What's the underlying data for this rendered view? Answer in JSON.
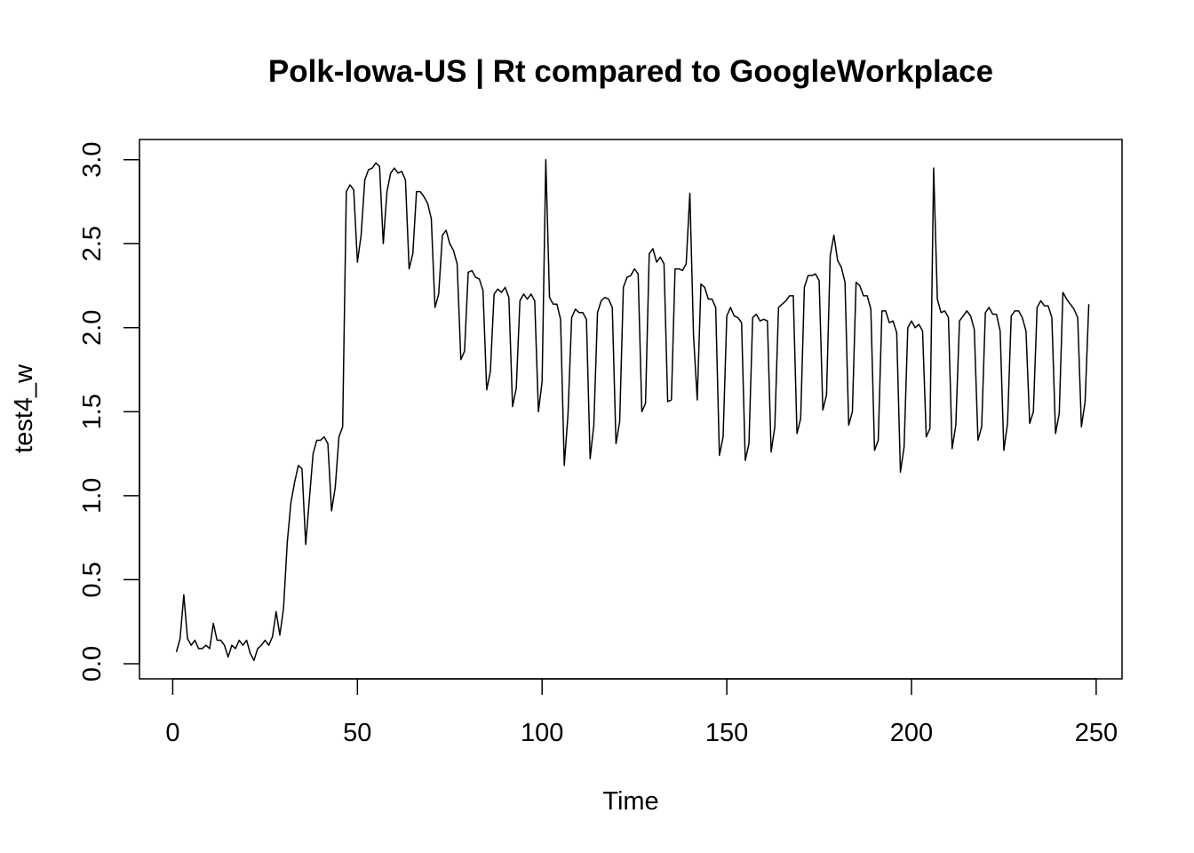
{
  "chart_data": {
    "type": "line",
    "title": "Polk-Iowa-US | Rt compared to GoogleWorkplace",
    "xlabel": "Time",
    "ylabel": "test4_w",
    "x_ticks": [
      0,
      50,
      100,
      150,
      200,
      250
    ],
    "y_ticks": [
      0.0,
      0.5,
      1.0,
      1.5,
      2.0,
      2.5,
      3.0
    ],
    "x_tick_labels": [
      "0",
      "50",
      "100",
      "150",
      "200",
      "250"
    ],
    "y_tick_labels": [
      "0.0",
      "0.5",
      "1.0",
      "1.5",
      "2.0",
      "2.5",
      "3.0"
    ],
    "xlim": [
      -9,
      257
    ],
    "ylim": [
      -0.09,
      3.12
    ],
    "grid": false,
    "line_color": "#000000",
    "x_start": 1,
    "series": [
      {
        "values": [
          0.07,
          0.15,
          0.41,
          0.15,
          0.11,
          0.14,
          0.09,
          0.09,
          0.11,
          0.09,
          0.24,
          0.14,
          0.14,
          0.11,
          0.04,
          0.11,
          0.09,
          0.14,
          0.11,
          0.14,
          0.06,
          0.02,
          0.09,
          0.11,
          0.14,
          0.11,
          0.16,
          0.31,
          0.17,
          0.33,
          0.72,
          0.96,
          1.08,
          1.18,
          1.16,
          0.71,
          0.98,
          1.25,
          1.33,
          1.33,
          1.35,
          1.31,
          0.91,
          1.05,
          1.35,
          1.41,
          2.81,
          2.85,
          2.82,
          2.39,
          2.55,
          2.88,
          2.94,
          2.95,
          2.98,
          2.96,
          2.5,
          2.81,
          2.92,
          2.95,
          2.92,
          2.93,
          2.88,
          2.35,
          2.44,
          2.81,
          2.81,
          2.78,
          2.74,
          2.65,
          2.12,
          2.2,
          2.55,
          2.58,
          2.5,
          2.46,
          2.38,
          1.81,
          1.86,
          2.33,
          2.34,
          2.3,
          2.29,
          2.22,
          1.63,
          1.74,
          2.2,
          2.23,
          2.21,
          2.24,
          2.18,
          1.53,
          1.64,
          2.16,
          2.2,
          2.17,
          2.2,
          2.16,
          1.5,
          1.68,
          3.0,
          2.18,
          2.14,
          2.14,
          2.05,
          1.18,
          1.48,
          2.06,
          2.11,
          2.09,
          2.09,
          2.05,
          1.22,
          1.42,
          2.09,
          2.16,
          2.18,
          2.17,
          2.12,
          1.31,
          1.44,
          2.24,
          2.3,
          2.31,
          2.35,
          2.32,
          1.5,
          1.55,
          2.44,
          2.47,
          2.39,
          2.42,
          2.38,
          1.56,
          1.57,
          2.35,
          2.35,
          2.34,
          2.38,
          2.8,
          1.95,
          1.57,
          2.26,
          2.24,
          2.17,
          2.17,
          2.12,
          1.24,
          1.35,
          2.07,
          2.12,
          2.07,
          2.06,
          2.03,
          1.21,
          1.31,
          2.06,
          2.08,
          2.04,
          2.05,
          2.04,
          1.26,
          1.41,
          2.12,
          2.14,
          2.16,
          2.19,
          2.19,
          1.37,
          1.46,
          2.24,
          2.31,
          2.31,
          2.32,
          2.28,
          1.51,
          1.6,
          2.43,
          2.55,
          2.4,
          2.36,
          2.27,
          1.42,
          1.5,
          2.27,
          2.25,
          2.19,
          2.19,
          2.11,
          1.27,
          1.33,
          2.1,
          2.1,
          2.03,
          2.04,
          1.97,
          1.14,
          1.29,
          2.0,
          2.04,
          2.0,
          2.02,
          1.98,
          1.35,
          1.4,
          2.95,
          2.17,
          2.09,
          2.1,
          2.06,
          1.28,
          1.42,
          2.04,
          2.07,
          2.1,
          2.07,
          1.99,
          1.33,
          1.41,
          2.09,
          2.12,
          2.08,
          2.08,
          1.98,
          1.27,
          1.43,
          2.07,
          2.1,
          2.1,
          2.06,
          1.98,
          1.43,
          1.5,
          2.12,
          2.16,
          2.13,
          2.13,
          2.06,
          1.37,
          1.49,
          2.21,
          2.17,
          2.14,
          2.11,
          2.06,
          1.41,
          1.56,
          2.14
        ]
      }
    ]
  }
}
